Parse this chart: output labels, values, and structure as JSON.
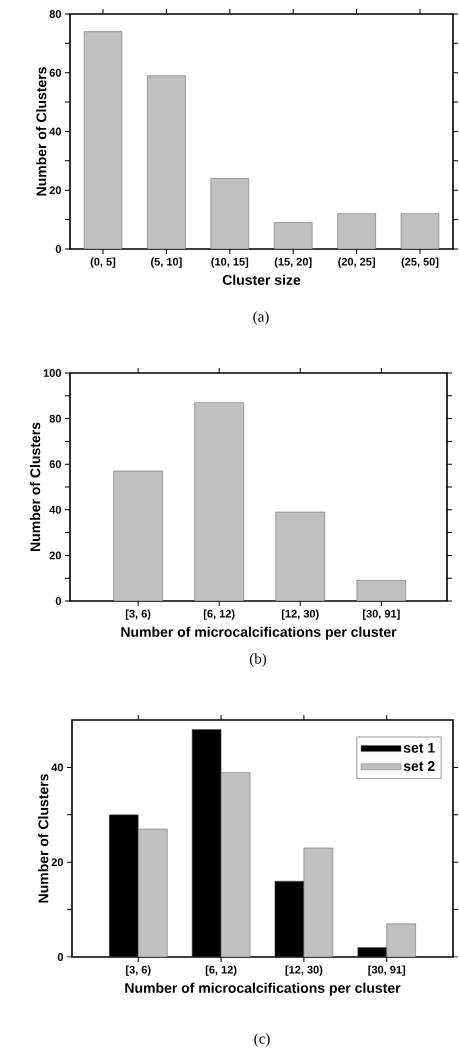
{
  "chart_data": [
    {
      "type": "bar",
      "xlabel": "Cluster size",
      "ylabel": "Number of Clusters",
      "categories": [
        "(0, 5]",
        "(5, 10]",
        "(10, 15]",
        "(15, 20]",
        "(20, 25]",
        "(25, 50]"
      ],
      "values": [
        74,
        59,
        24,
        9,
        12,
        12
      ],
      "color": "#c0c0c0",
      "ylim": [
        0,
        80
      ],
      "yticks": [
        0,
        {
          "value": 10,
          "label": null
        },
        20,
        {
          "value": 30,
          "label": null
        },
        40,
        {
          "value": 50,
          "label": null
        },
        60,
        {
          "value": 70,
          "label": null
        },
        80
      ],
      "annotations": [
        "(a)"
      ]
    },
    {
      "type": "bar",
      "xlabel": "Number of microcalcifications per cluster",
      "ylabel": "Number of Clusters",
      "categories": [
        "[3, 6)",
        "[6, 12)",
        "[12, 30)",
        "[30, 91]"
      ],
      "values": [
        57,
        87,
        39,
        9
      ],
      "color": "#c0c0c0",
      "ylim": [
        0,
        100
      ],
      "yticks": [
        0,
        {
          "value": 10,
          "label": null
        },
        20,
        {
          "value": 30,
          "label": null
        },
        40,
        {
          "value": 50,
          "label": null
        },
        60,
        {
          "value": 70,
          "label": null
        },
        80,
        {
          "value": 90,
          "label": null
        },
        100
      ],
      "annotations": [
        "(b)"
      ]
    },
    {
      "type": "bar",
      "xlabel": "Number of microcalcifications per cluster",
      "ylabel": "Number of Clusters",
      "categories": [
        "[3, 6)",
        "[6, 12)",
        "[12, 30)",
        "[30, 91]"
      ],
      "series": [
        {
          "name": "set 1",
          "color": "#000000",
          "values": [
            30,
            48,
            16,
            2
          ]
        },
        {
          "name": "set 2",
          "color": "#c0c0c0",
          "values": [
            27,
            39,
            23,
            7
          ]
        }
      ],
      "ylim": [
        0,
        50
      ],
      "yticks": [
        0,
        {
          "value": 10,
          "label": null
        },
        20,
        {
          "value": 30,
          "label": null
        },
        40
      ],
      "legend": "top right",
      "annotations": [
        "(c)"
      ]
    }
  ]
}
